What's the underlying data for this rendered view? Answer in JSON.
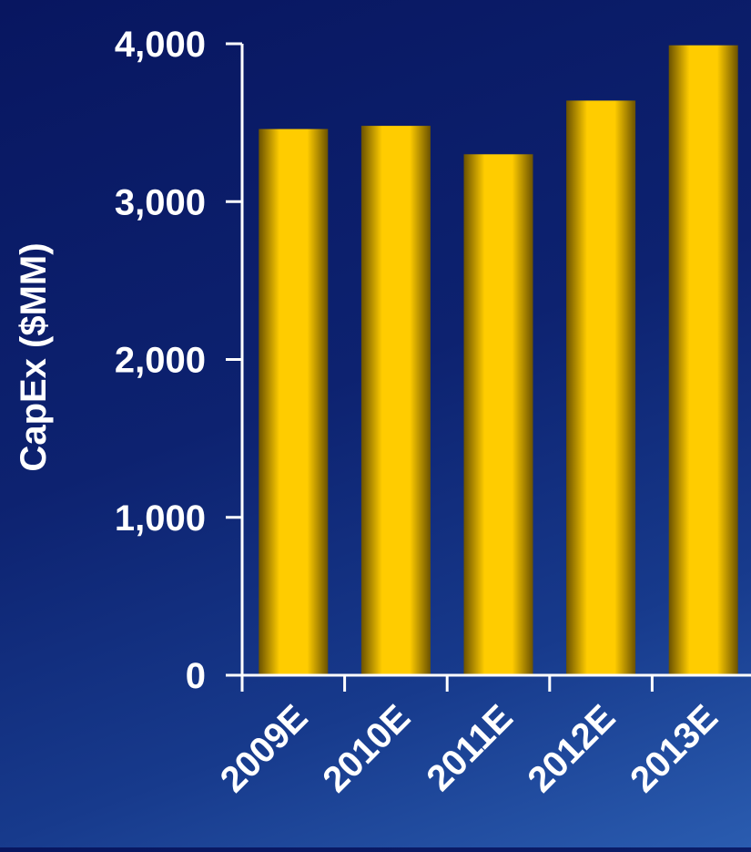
{
  "chart_data": {
    "type": "bar",
    "categories": [
      "2009E",
      "2010E",
      "2011E",
      "2012E",
      "2013E"
    ],
    "values": [
      3460,
      3480,
      3300,
      3640,
      3990
    ],
    "ylabel": "CapEx ($MM)",
    "xlabel": "",
    "ylim": [
      0,
      4000
    ],
    "yticks": [
      "0",
      "1,000",
      "2,000",
      "3,000",
      "4,000"
    ],
    "bar_color": "#ffcc00",
    "bar_edge_color": "#6b5200",
    "background_color": "#0a1a66",
    "grid": false,
    "legend": "none"
  }
}
